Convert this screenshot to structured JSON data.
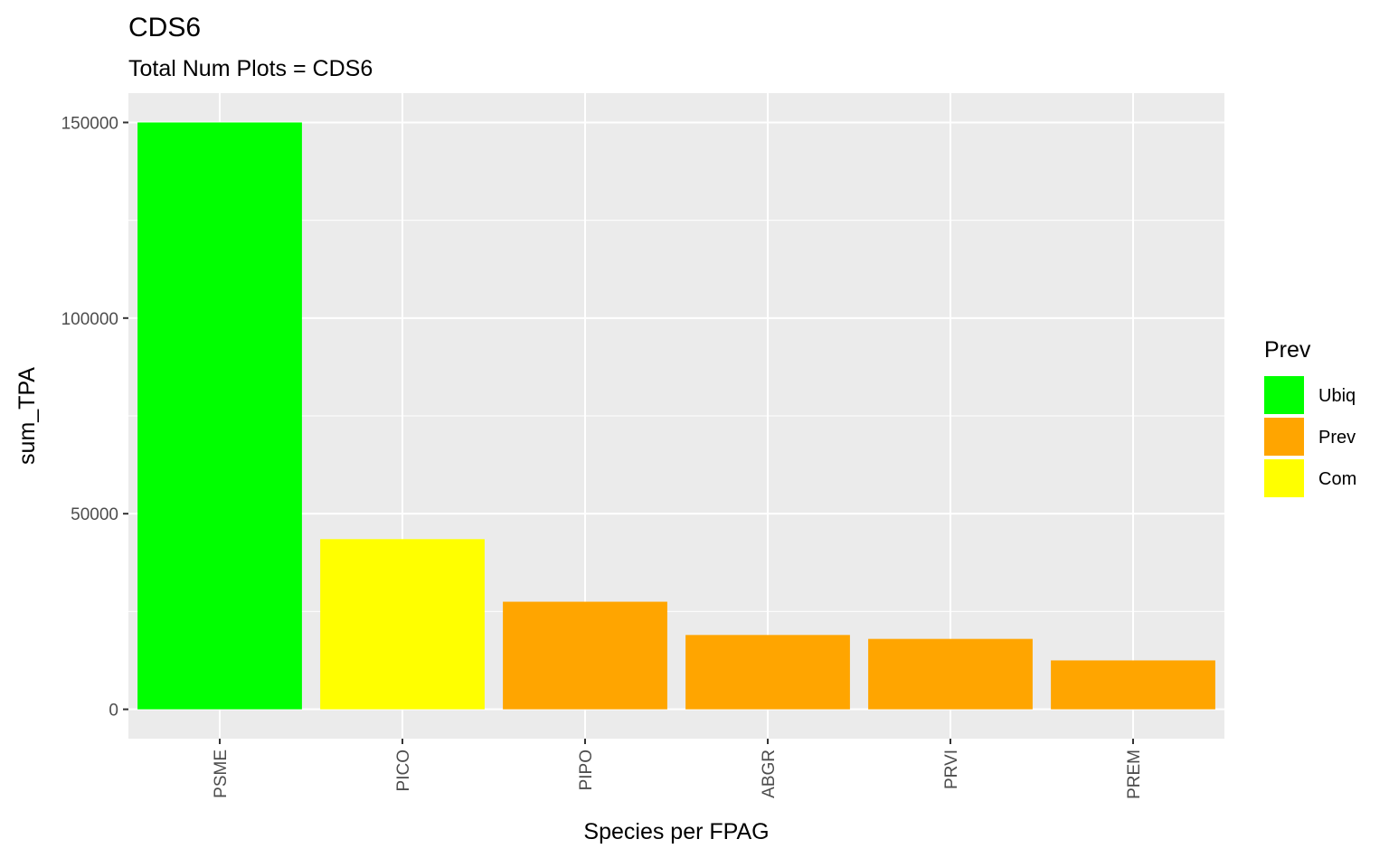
{
  "chart_data": {
    "type": "bar",
    "title": "CDS6",
    "subtitle": "Total Num Plots = CDS6",
    "xlabel": "Species per FPAG",
    "ylabel": "sum_TPA",
    "categories": [
      "PSME",
      "PICO",
      "PIPO",
      "ABGR",
      "PRVI",
      "PREM"
    ],
    "values": [
      150000,
      43500,
      27500,
      19000,
      18000,
      12500
    ],
    "groups": [
      "Ubiq",
      "Com",
      "Prev",
      "Prev",
      "Prev",
      "Prev"
    ],
    "ylim": [
      -7500,
      157500
    ],
    "yticks": [
      0,
      50000,
      100000,
      150000
    ],
    "ytick_labels": [
      "0",
      "50000",
      "100000",
      "150000"
    ],
    "grid": true,
    "panel_background": "#ebebeb",
    "legend": {
      "title": "Prev",
      "position": "right",
      "items": [
        {
          "label": "Ubiq",
          "color": "#00ff00"
        },
        {
          "label": "Prev",
          "color": "#ffa500"
        },
        {
          "label": "Com",
          "color": "#ffff00"
        }
      ]
    }
  }
}
